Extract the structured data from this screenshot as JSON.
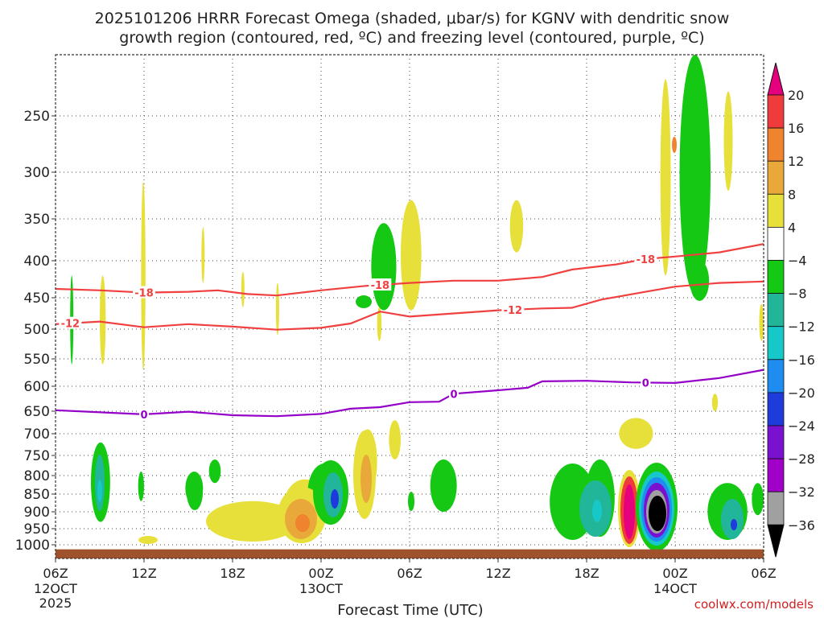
{
  "header": {
    "title_line1": "2025101206 HRRR Forecast Omega (shaded, μbar/s) for KGNV with dendritic snow",
    "title_line2": "growth region (contoured, red, ºC) and freezing level (contoured, purple, ºC)"
  },
  "chart_data": {
    "type": "time-height cross section",
    "xlabel": "Forecast Time (UTC)",
    "x_ticks": [
      "06Z",
      "12Z",
      "18Z",
      "00Z",
      "06Z",
      "12Z",
      "18Z",
      "00Z",
      "06Z"
    ],
    "x_date_labels": [
      {
        "tick_index": 0,
        "lines": [
          "12OCT",
          "2025"
        ]
      },
      {
        "tick_index": 3,
        "lines": [
          "13OCT"
        ]
      },
      {
        "tick_index": 7,
        "lines": [
          "14OCT"
        ]
      }
    ],
    "x_range_hours": [
      0,
      48
    ],
    "y_scale": "pressure (hPa), decreasing upward",
    "y_range": [
      1030,
      200
    ],
    "y_ticks": [
      250,
      300,
      350,
      400,
      450,
      500,
      550,
      600,
      650,
      700,
      750,
      800,
      850,
      900,
      950,
      1000
    ],
    "grid": true,
    "colorbar": {
      "labels": [
        "20",
        "16",
        "12",
        "8",
        "4",
        "−4",
        "−8",
        "−12",
        "−16",
        "−20",
        "−24",
        "−28",
        "−32",
        "−36"
      ],
      "colors": [
        "#e6007e",
        "#ef3b3b",
        "#f0832e",
        "#e9a93a",
        "#e8e03a",
        "#ffffff",
        "#14c814",
        "#21b59a",
        "#17c8c8",
        "#1e8cf0",
        "#1e3cdc",
        "#7a10d0",
        "#a000c8",
        "#a0a0a0",
        "#000000"
      ]
    },
    "contours": [
      {
        "color": "#f04040",
        "label": "-18",
        "points": [
          [
            0,
            438
          ],
          [
            3,
            440
          ],
          [
            6,
            443
          ],
          [
            9,
            442
          ],
          [
            11,
            440
          ],
          [
            13,
            445
          ],
          [
            15,
            447
          ],
          [
            18,
            440
          ],
          [
            21,
            434
          ],
          [
            24,
            430
          ],
          [
            27,
            427
          ],
          [
            30,
            427
          ],
          [
            33,
            422
          ],
          [
            35,
            412
          ],
          [
            38,
            405
          ],
          [
            40,
            398
          ],
          [
            42,
            395
          ],
          [
            45,
            390
          ],
          [
            48,
            380
          ]
        ],
        "label_at_hours": [
          6,
          22,
          40
        ]
      },
      {
        "color": "#f04040",
        "label": "-12",
        "points": [
          [
            0,
            492
          ],
          [
            3,
            488
          ],
          [
            6,
            497
          ],
          [
            9,
            492
          ],
          [
            12,
            496
          ],
          [
            15,
            501
          ],
          [
            18,
            498
          ],
          [
            20,
            491
          ],
          [
            22,
            472
          ],
          [
            24,
            480
          ],
          [
            27,
            475
          ],
          [
            30,
            470
          ],
          [
            33,
            467
          ],
          [
            35,
            466
          ],
          [
            37,
            453
          ],
          [
            40,
            442
          ],
          [
            42,
            435
          ],
          [
            45,
            430
          ],
          [
            48,
            428
          ]
        ],
        "label_at_hours": [
          1,
          31
        ]
      },
      {
        "color": "#9400c8",
        "label": "0",
        "points": [
          [
            0,
            648
          ],
          [
            6,
            657
          ],
          [
            9,
            651
          ],
          [
            12,
            659
          ],
          [
            15,
            661
          ],
          [
            18,
            656
          ],
          [
            20,
            645
          ],
          [
            22,
            642
          ],
          [
            24,
            632
          ],
          [
            26,
            631
          ],
          [
            27,
            615
          ],
          [
            30,
            608
          ],
          [
            32,
            603
          ],
          [
            33,
            591
          ],
          [
            36,
            590
          ],
          [
            39,
            593
          ],
          [
            42,
            594
          ],
          [
            45,
            585
          ],
          [
            48,
            570
          ]
        ],
        "label_at_hours": [
          6,
          27,
          40
        ]
      }
    ],
    "terrain": {
      "color": "#a0522d",
      "top_hpa": 1010,
      "bottom_hpa": 1030
    },
    "shaded_regions": [
      {
        "color": "#14c814",
        "hours": [
          1.0,
          1.2
        ],
        "p": [
          420,
          560
        ]
      },
      {
        "color": "#e8e03a",
        "hours": [
          3.0,
          3.4
        ],
        "p": [
          420,
          560
        ]
      },
      {
        "color": "#e8e03a",
        "hours": [
          5.8,
          6.1
        ],
        "p": [
          310,
          570
        ]
      },
      {
        "color": "#e8e03a",
        "hours": [
          9.9,
          10.1
        ],
        "p": [
          360,
          430
        ]
      },
      {
        "color": "#e8e03a",
        "hours": [
          12.6,
          12.8
        ],
        "p": [
          415,
          465
        ]
      },
      {
        "color": "#e8e03a",
        "hours": [
          15.0,
          15.1
        ],
        "p": [
          430,
          510
        ]
      },
      {
        "color": "#14c814",
        "hours": [
          21.4,
          23.1
        ],
        "p": [
          355,
          470
        ]
      },
      {
        "color": "#e8e03a",
        "hours": [
          23.4,
          24.8
        ],
        "p": [
          330,
          470
        ]
      },
      {
        "color": "#e8e03a",
        "hours": [
          30.8,
          31.7
        ],
        "p": [
          330,
          390
        ]
      },
      {
        "color": "#e8e03a",
        "hours": [
          41.0,
          41.7
        ],
        "p": [
          220,
          420
        ]
      },
      {
        "color": "#14c814",
        "hours": [
          42.3,
          44.4
        ],
        "p": [
          200,
          445
        ]
      },
      {
        "color": "#14c814",
        "hours": [
          43.0,
          44.3
        ],
        "p": [
          400,
          455
        ]
      },
      {
        "color": "#e8e03a",
        "hours": [
          45.3,
          45.9
        ],
        "p": [
          230,
          320
        ]
      },
      {
        "color": "#e8e03a",
        "hours": [
          21.8,
          22.1
        ],
        "p": [
          465,
          520
        ]
      },
      {
        "color": "#e8e03a",
        "hours": [
          47.7,
          48.0
        ],
        "p": [
          460,
          520
        ]
      },
      {
        "color": "#e8e03a",
        "hours": [
          38.2,
          40.5
        ],
        "p": [
          665,
          735
        ]
      },
      {
        "color": "#e8e03a",
        "hours": [
          44.5,
          44.9
        ],
        "p": [
          615,
          650
        ]
      },
      {
        "color": "#e8e03a",
        "hours": [
          20.5,
          21.8
        ],
        "p": [
          690,
          850
        ]
      },
      {
        "color": "#e8e03a",
        "hours": [
          22.6,
          23.4
        ],
        "p": [
          670,
          760
        ]
      },
      {
        "color": "#14c814",
        "hours": [
          2.4,
          3.7
        ],
        "p": [
          720,
          930
        ]
      },
      {
        "color": "#14c814",
        "hours": [
          5.6,
          6.0
        ],
        "p": [
          790,
          870
        ]
      },
      {
        "color": "#14c814",
        "hours": [
          8.8,
          10.0
        ],
        "p": [
          790,
          880
        ]
      },
      {
        "color": "#14c814",
        "hours": [
          10.4,
          11.2
        ],
        "p": [
          760,
          820
        ]
      },
      {
        "color": "#e8e03a",
        "hours": [
          10.2,
          16.5
        ],
        "p": [
          870,
          990
        ]
      },
      {
        "color": "#e8e03a",
        "hours": [
          15.4,
          18.4
        ],
        "p": [
          810,
          985
        ]
      },
      {
        "color": "#14c814",
        "hours": [
          17.1,
          19.4
        ],
        "p": [
          770,
          925
        ]
      },
      {
        "color": "#14c814",
        "hours": [
          25.4,
          27.2
        ],
        "p": [
          760,
          900
        ]
      },
      {
        "color": "#14c814",
        "hours": [
          33.5,
          36.6
        ],
        "p": [
          770,
          985
        ]
      },
      {
        "color": "#14c814",
        "hours": [
          35.9,
          37.9
        ],
        "p": [
          760,
          975
        ]
      },
      {
        "color": "#14c814",
        "hours": [
          44.2,
          46.9
        ],
        "p": [
          820,
          985
        ]
      },
      {
        "color": "#14c814",
        "hours": [
          47.2,
          48.0
        ],
        "p": [
          820,
          910
        ]
      }
    ]
  },
  "footer": {
    "credit": "coolwx.com/models"
  }
}
